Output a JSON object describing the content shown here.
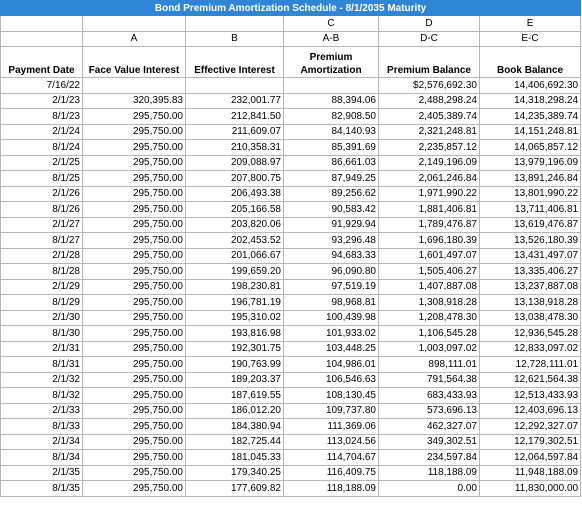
{
  "title": "Bond Premium Amortization Schedule - 8/1/2035 Maturity",
  "formula_row1": [
    "",
    "",
    "",
    "C",
    "D",
    "E"
  ],
  "formula_row2": [
    "",
    "A",
    "B",
    "A-B",
    "D-C",
    "E-C"
  ],
  "headers": [
    "Payment Date",
    "Face Value Interest",
    "Effective Interest",
    "Premium Amortization",
    "Premium Balance",
    "Book Balance"
  ],
  "rows": [
    [
      "7/16/22",
      "",
      "",
      "",
      "$2,576,692.30",
      "14,406,692.30"
    ],
    [
      "2/1/23",
      "320,395.83",
      "232,001.77",
      "88,394.06",
      "2,488,298.24",
      "14,318,298.24"
    ],
    [
      "8/1/23",
      "295,750.00",
      "212,841.50",
      "82,908.50",
      "2,405,389.74",
      "14,235,389.74"
    ],
    [
      "2/1/24",
      "295,750.00",
      "211,609.07",
      "84,140.93",
      "2,321,248.81",
      "14,151,248.81"
    ],
    [
      "8/1/24",
      "295,750.00",
      "210,358.31",
      "85,391.69",
      "2,235,857.12",
      "14,065,857.12"
    ],
    [
      "2/1/25",
      "295,750.00",
      "209,088.97",
      "86,661.03",
      "2,149,196.09",
      "13,979,196.09"
    ],
    [
      "8/1/25",
      "295,750.00",
      "207,800.75",
      "87,949.25",
      "2,061,246.84",
      "13,891,246.84"
    ],
    [
      "2/1/26",
      "295,750.00",
      "206,493.38",
      "89,256.62",
      "1,971,990.22",
      "13,801,990.22"
    ],
    [
      "8/1/26",
      "295,750.00",
      "205,166.58",
      "90,583.42",
      "1,881,406.81",
      "13,711,406.81"
    ],
    [
      "2/1/27",
      "295,750.00",
      "203,820.06",
      "91,929.94",
      "1,789,476.87",
      "13,619,476.87"
    ],
    [
      "8/1/27",
      "295,750.00",
      "202,453.52",
      "93,296.48",
      "1,696,180.39",
      "13,526,180.39"
    ],
    [
      "2/1/28",
      "295,750.00",
      "201,066.67",
      "94,683.33",
      "1,601,497.07",
      "13,431,497.07"
    ],
    [
      "8/1/28",
      "295,750.00",
      "199,659.20",
      "96,090.80",
      "1,505,406.27",
      "13,335,406.27"
    ],
    [
      "2/1/29",
      "295,750.00",
      "198,230.81",
      "97,519.19",
      "1,407,887.08",
      "13,237,887.08"
    ],
    [
      "8/1/29",
      "295,750.00",
      "196,781.19",
      "98,968.81",
      "1,308,918.28",
      "13,138,918.28"
    ],
    [
      "2/1/30",
      "295,750.00",
      "195,310.02",
      "100,439.98",
      "1,208,478.30",
      "13,038,478.30"
    ],
    [
      "8/1/30",
      "295,750.00",
      "193,816.98",
      "101,933.02",
      "1,106,545.28",
      "12,936,545.28"
    ],
    [
      "2/1/31",
      "295,750.00",
      "192,301.75",
      "103,448.25",
      "1,003,097.02",
      "12,833,097.02"
    ],
    [
      "8/1/31",
      "295,750.00",
      "190,763.99",
      "104,986.01",
      "898,111.01",
      "12,728,111.01"
    ],
    [
      "2/1/32",
      "295,750.00",
      "189,203.37",
      "106,546.63",
      "791,564.38",
      "12,621,564.38"
    ],
    [
      "8/1/32",
      "295,750.00",
      "187,619.55",
      "108,130.45",
      "683,433.93",
      "12,513,433.93"
    ],
    [
      "2/1/33",
      "295,750.00",
      "186,012.20",
      "109,737.80",
      "573,696.13",
      "12,403,696.13"
    ],
    [
      "8/1/33",
      "295,750.00",
      "184,380.94",
      "111,369.06",
      "462,327.07",
      "12,292,327.07"
    ],
    [
      "2/1/34",
      "295,750.00",
      "182,725.44",
      "113,024.56",
      "349,302.51",
      "12,179,302.51"
    ],
    [
      "8/1/34",
      "295,750.00",
      "181,045.33",
      "114,704.67",
      "234,597.84",
      "12,064,597.84"
    ],
    [
      "2/1/35",
      "295,750.00",
      "179,340.25",
      "116,409.75",
      "118,188.09",
      "11,948,188.09"
    ],
    [
      "8/1/35",
      "295,750.00",
      "177,609.82",
      "118,188.09",
      "0.00",
      "11,830,000.00"
    ]
  ]
}
